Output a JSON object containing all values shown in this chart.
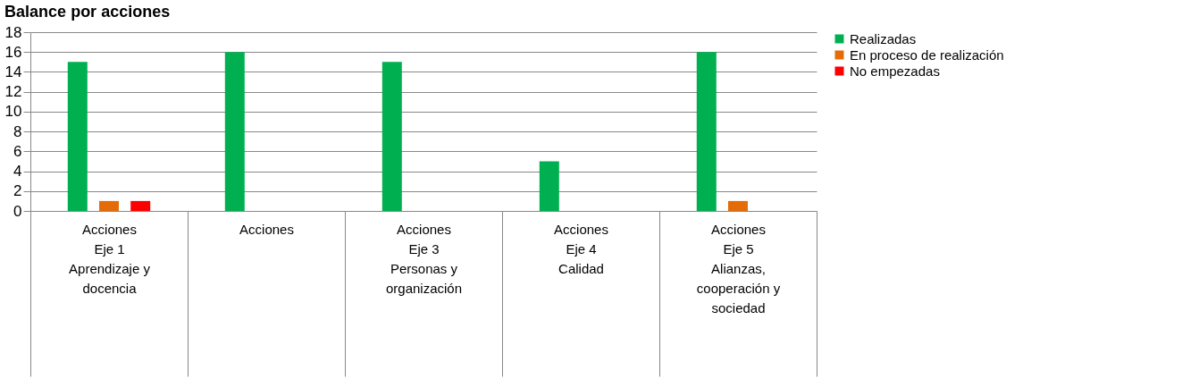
{
  "chart_data": {
    "type": "bar",
    "title": "Balance por acciones",
    "categories": [
      "Acciones\n\nEje 1\nAprendizaje y\ndocencia",
      "Acciones",
      "Acciones\n\nEje 3\nPersonas y\norganización",
      "Acciones\n\nEje 4\nCalidad",
      "Acciones\n\nEje 5\nAlianzas,\ncooperación y\nsociedad"
    ],
    "series": [
      {
        "name": "Realizadas",
        "color": "#00b050",
        "values": [
          15,
          16,
          15,
          5,
          16
        ]
      },
      {
        "name": "En proceso de realización",
        "color": "#e36c09",
        "values": [
          1,
          0,
          0,
          0,
          1
        ]
      },
      {
        "name": "No empezadas",
        "color": "#ff0000",
        "values": [
          1,
          0,
          0,
          0,
          0
        ]
      }
    ],
    "ylim": [
      0,
      18
    ],
    "yticks": [
      0,
      2,
      4,
      6,
      8,
      10,
      12,
      14,
      16,
      18
    ],
    "grid": "y",
    "legend": "right"
  }
}
